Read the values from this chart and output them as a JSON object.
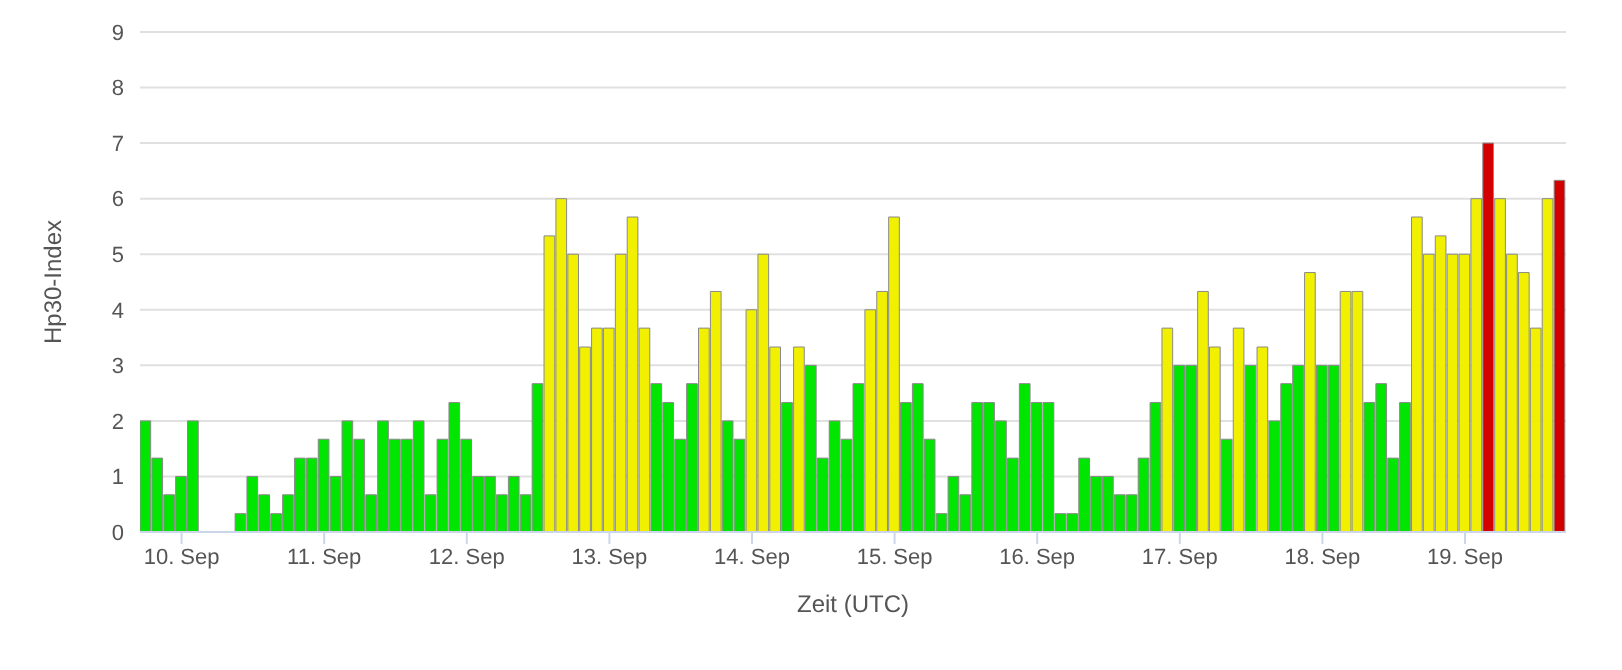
{
  "chart_data": {
    "type": "bar",
    "xlabel": "Zeit (UTC)",
    "ylabel": "Hp30-Index",
    "x": [
      "--09-09T18:00",
      "--09-09T20:00",
      "--09-09T22:00",
      "--09-10T00:00",
      "--09-10T02:00",
      "--09-10T04:00",
      "--09-10T06:00",
      "--09-10T08:00",
      "--09-10T10:00",
      "--09-10T12:00",
      "--09-10T14:00",
      "--09-10T16:00",
      "--09-10T18:00",
      "--09-10T20:00",
      "--09-10T22:00",
      "--09-11T00:00",
      "--09-11T02:00",
      "--09-11T04:00",
      "--09-11T06:00",
      "--09-11T08:00",
      "--09-11T10:00",
      "--09-11T12:00",
      "--09-11T14:00",
      "--09-11T16:00",
      "--09-11T18:00",
      "--09-11T20:00",
      "--09-11T22:00",
      "--09-12T00:00",
      "--09-12T02:00",
      "--09-12T04:00",
      "--09-12T06:00",
      "--09-12T08:00",
      "--09-12T10:00",
      "--09-12T12:00",
      "--09-12T14:00",
      "--09-12T16:00",
      "--09-12T18:00",
      "--09-12T20:00",
      "--09-12T22:00",
      "--09-13T00:00",
      "--09-13T02:00",
      "--09-13T04:00",
      "--09-13T06:00",
      "--09-13T08:00",
      "--09-13T10:00",
      "--09-13T12:00",
      "--09-13T14:00",
      "--09-13T16:00",
      "--09-13T18:00",
      "--09-13T20:00",
      "--09-13T22:00",
      "--09-14T00:00",
      "--09-14T02:00",
      "--09-14T04:00",
      "--09-14T06:00",
      "--09-14T08:00",
      "--09-14T10:00",
      "--09-14T12:00",
      "--09-14T14:00",
      "--09-14T16:00",
      "--09-14T18:00",
      "--09-14T20:00",
      "--09-14T22:00",
      "--09-15T00:00",
      "--09-15T02:00",
      "--09-15T04:00",
      "--09-15T06:00",
      "--09-15T08:00",
      "--09-15T10:00",
      "--09-15T12:00",
      "--09-15T14:00",
      "--09-15T16:00",
      "--09-15T18:00",
      "--09-15T20:00",
      "--09-15T22:00",
      "--09-16T00:00",
      "--09-16T02:00",
      "--09-16T04:00",
      "--09-16T06:00",
      "--09-16T08:00",
      "--09-16T10:00",
      "--09-16T12:00",
      "--09-16T14:00",
      "--09-16T16:00",
      "--09-16T18:00",
      "--09-16T20:00",
      "--09-16T22:00",
      "--09-17T00:00",
      "--09-17T02:00",
      "--09-17T04:00",
      "--09-17T06:00",
      "--09-17T08:00",
      "--09-17T10:00",
      "--09-17T12:00",
      "--09-17T14:00",
      "--09-17T16:00",
      "--09-17T18:00",
      "--09-17T20:00",
      "--09-17T22:00",
      "--09-18T00:00",
      "--09-18T02:00",
      "--09-18T04:00",
      "--09-18T06:00",
      "--09-18T08:00",
      "--09-18T10:00",
      "--09-18T12:00",
      "--09-18T14:00",
      "--09-18T16:00",
      "--09-18T18:00",
      "--09-18T20:00",
      "--09-18T22:00",
      "--09-19T00:00",
      "--09-19T02:00",
      "--09-19T04:00",
      "--09-19T06:00",
      "--09-19T08:00",
      "--09-19T10:00",
      "--09-19T12:00",
      "--09-19T14:00",
      "--09-19T16:00"
    ],
    "values": [
      2,
      1.33,
      0.67,
      1,
      2,
      0,
      0,
      0,
      0.33,
      1,
      0.67,
      0.33,
      0.67,
      1.33,
      1.33,
      1.67,
      1,
      2,
      1.67,
      0.67,
      2,
      1.67,
      1.67,
      2,
      0.67,
      1.67,
      2.33,
      1.67,
      1,
      1,
      0.67,
      1,
      0.67,
      2.67,
      5.33,
      6,
      5,
      3.33,
      3.67,
      3.67,
      5,
      5.67,
      3.67,
      2.67,
      2.33,
      1.67,
      2.67,
      3.67,
      4.33,
      2,
      1.67,
      4,
      5,
      3.33,
      2.33,
      3.33,
      3,
      1.33,
      2,
      1.67,
      2.67,
      4,
      4.33,
      5.67,
      2.33,
      2.67,
      1.67,
      0.33,
      1,
      0.67,
      2.33,
      2.33,
      2,
      1.33,
      2.67,
      2.33,
      2.33,
      0.33,
      0.33,
      1.33,
      1,
      1,
      0.67,
      0.67,
      1.33,
      2.33,
      3.67,
      3,
      3,
      4.33,
      3.33,
      1.67,
      3.67,
      3,
      3.33,
      2,
      2.67,
      3,
      4.67,
      3,
      3,
      4.33,
      4.33,
      2.33,
      2.67,
      1.33,
      2.33,
      5.67,
      5,
      5.33,
      5,
      5,
      6,
      7,
      6,
      5,
      4.67,
      3.67,
      6,
      6.33
    ],
    "colors": [
      "#00e600",
      "#00e600",
      "#00e600",
      "#00e600",
      "#00e600",
      "#00e600",
      "#00e600",
      "#00e600",
      "#00e600",
      "#00e600",
      "#00e600",
      "#00e600",
      "#00e600",
      "#00e600",
      "#00e600",
      "#00e600",
      "#00e600",
      "#00e600",
      "#00e600",
      "#00e600",
      "#00e600",
      "#00e600",
      "#00e600",
      "#00e600",
      "#00e600",
      "#00e600",
      "#00e600",
      "#00e600",
      "#00e600",
      "#00e600",
      "#00e600",
      "#00e600",
      "#00e600",
      "#00e600",
      "#f0f000",
      "#f0f000",
      "#f0f000",
      "#f0f000",
      "#f0f000",
      "#f0f000",
      "#f0f000",
      "#f0f000",
      "#f0f000",
      "#00e600",
      "#00e600",
      "#00e600",
      "#00e600",
      "#f0f000",
      "#f0f000",
      "#00e600",
      "#00e600",
      "#f0f000",
      "#f0f000",
      "#f0f000",
      "#00e600",
      "#f0f000",
      "#00e600",
      "#00e600",
      "#00e600",
      "#00e600",
      "#00e600",
      "#f0f000",
      "#f0f000",
      "#f0f000",
      "#00e600",
      "#00e600",
      "#00e600",
      "#00e600",
      "#00e600",
      "#00e600",
      "#00e600",
      "#00e600",
      "#00e600",
      "#00e600",
      "#00e600",
      "#00e600",
      "#00e600",
      "#00e600",
      "#00e600",
      "#00e600",
      "#00e600",
      "#00e600",
      "#00e600",
      "#00e600",
      "#00e600",
      "#00e600",
      "#f0f000",
      "#00e600",
      "#00e600",
      "#f0f000",
      "#f0f000",
      "#00e600",
      "#f0f000",
      "#00e600",
      "#f0f000",
      "#00e600",
      "#00e600",
      "#00e600",
      "#f0f000",
      "#00e600",
      "#00e600",
      "#f0f000",
      "#f0f000",
      "#00e600",
      "#00e600",
      "#00e600",
      "#00e600",
      "#f0f000",
      "#f0f000",
      "#f0f000",
      "#f0f000",
      "#f0f000",
      "#f0f000",
      "#d40000",
      "#f0f000",
      "#f0f000",
      "#f0f000",
      "#f0f000",
      "#f0f000",
      "#d40000"
    ],
    "xlim": [
      "--09-09T17:00",
      "--09-19T17:00"
    ],
    "xticks": [
      {
        "value": "--09-10",
        "label": "10. Sep"
      },
      {
        "value": "--09-11",
        "label": "11. Sep"
      },
      {
        "value": "--09-12",
        "label": "12. Sep"
      },
      {
        "value": "--09-13",
        "label": "13. Sep"
      },
      {
        "value": "--09-14",
        "label": "14. Sep"
      },
      {
        "value": "--09-15",
        "label": "15. Sep"
      },
      {
        "value": "--09-16",
        "label": "16. Sep"
      },
      {
        "value": "--09-17",
        "label": "17. Sep"
      },
      {
        "value": "--09-18",
        "label": "18. Sep"
      },
      {
        "value": "--09-19",
        "label": "19. Sep"
      }
    ],
    "ylim": [
      0,
      9
    ],
    "yticks": [
      0,
      1,
      2,
      3,
      4,
      5,
      6,
      7,
      8,
      9
    ],
    "grid": "y",
    "legend": false
  }
}
